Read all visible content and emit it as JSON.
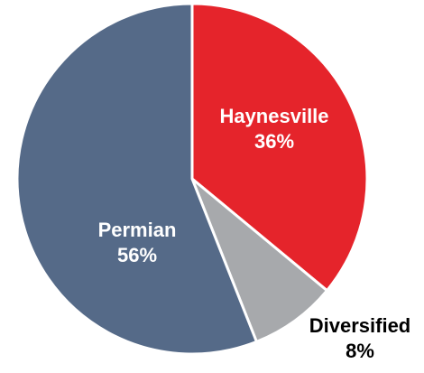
{
  "chart_data": {
    "type": "pie",
    "slices": [
      {
        "name": "Haynesville",
        "value": 36,
        "label": "36%",
        "color": "#e5242b",
        "label_color": "#ffffff"
      },
      {
        "name": "Diversified",
        "value": 8,
        "label": "8%",
        "color": "#a7a9ac",
        "label_color": "#000000"
      },
      {
        "name": "Permian",
        "value": 56,
        "label": "56%",
        "color": "#556a88",
        "label_color": "#ffffff"
      }
    ],
    "start_position": "top",
    "direction": "clockwise",
    "label_positions": [
      "inside",
      "outside-bottom-right",
      "inside"
    ]
  }
}
